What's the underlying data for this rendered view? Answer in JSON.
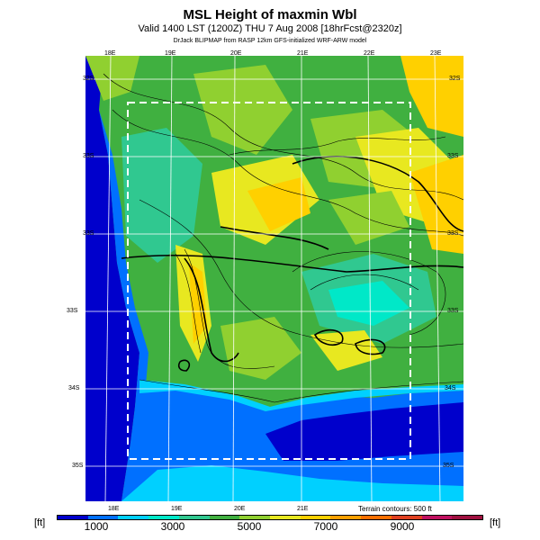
{
  "title": "MSL Height of maxmin Wbl",
  "subtitle": "Valid 1400 LST (1200Z) THU 7 Aug 2008 [18hrFcst@2320z]",
  "credit": "DrJack BLIPMAP from RASP 12km GFS-initialized WRF-ARW model",
  "lon_labels_top": [
    "18E",
    "19E",
    "20E",
    "21E",
    "22E",
    "23E"
  ],
  "lon_labels_bottom": [
    "18E",
    "19E",
    "20E",
    "21E"
  ],
  "lat_labels_left": [
    "32S",
    "33S",
    "33S",
    "33S",
    "34S",
    "35S"
  ],
  "lat_labels_right": [
    "32S",
    "33S",
    "33S",
    "33S",
    "34S",
    "35S"
  ],
  "colorbar": {
    "unit_left": "[ft]",
    "unit_right": "[ft]",
    "ticks": [
      "1000",
      "3000",
      "5000",
      "7000",
      "9000"
    ],
    "colors": [
      "#0000cc",
      "#0070ff",
      "#00d0ff",
      "#00e8c8",
      "#30c890",
      "#40b040",
      "#90d030",
      "#e8e820",
      "#ffd000",
      "#ffa000",
      "#ff7000",
      "#e04020",
      "#c01060",
      "#a01040"
    ]
  },
  "terrain_note": "Terrain contours: 500 ft"
}
